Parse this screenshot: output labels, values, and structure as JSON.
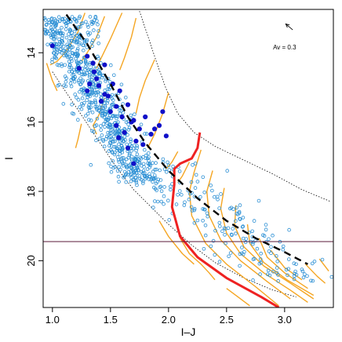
{
  "chart_data": {
    "type": "scatter",
    "title": "",
    "xlabel": "I–J",
    "ylabel": "I",
    "xlim": [
      0.92,
      3.42
    ],
    "ylim": [
      21.35,
      12.75
    ],
    "y_inverted": true,
    "xticks": [
      1.0,
      1.5,
      2.0,
      2.5,
      3.0
    ],
    "xtick_labels": [
      "1.0",
      "1.5",
      "2.0",
      "2.5",
      "3.0"
    ],
    "yticks": [
      14,
      16,
      18,
      20
    ],
    "ytick_labels": [
      "14",
      "16",
      "18",
      "20"
    ],
    "annotation": {
      "text": "Av = 0.3",
      "x": 3.0,
      "y": 13.9
    },
    "reddening_vector": {
      "from": [
        3.07,
        13.34
      ],
      "to": [
        3.01,
        13.17
      ]
    },
    "limit_line": {
      "y": 19.45,
      "color": "#5a1a3a"
    },
    "colors": {
      "open_points": "#2b8fd4",
      "filled_points": "#1010c8",
      "tracks": "#f5a623",
      "highlight_track": "#ee2222",
      "isochrone": "#000000"
    },
    "filled_points": [
      [
        1.0,
        13.8
      ],
      [
        1.23,
        14.45
      ],
      [
        1.3,
        14.1
      ],
      [
        1.3,
        15.1
      ],
      [
        1.32,
        14.9
      ],
      [
        1.35,
        14.3
      ],
      [
        1.38,
        14.75
      ],
      [
        1.4,
        14.95
      ],
      [
        1.42,
        15.4
      ],
      [
        1.45,
        14.35
      ],
      [
        1.45,
        15.2
      ],
      [
        1.5,
        15.7
      ],
      [
        1.52,
        14.9
      ],
      [
        1.55,
        15.55
      ],
      [
        1.55,
        16.1
      ],
      [
        1.58,
        15.1
      ],
      [
        1.6,
        15.85
      ],
      [
        1.62,
        16.3
      ],
      [
        1.65,
        15.5
      ],
      [
        1.68,
        16.0
      ],
      [
        1.7,
        15.95
      ],
      [
        1.72,
        16.55
      ],
      [
        1.75,
        16.2
      ],
      [
        1.78,
        16.65
      ],
      [
        1.8,
        15.85
      ],
      [
        1.85,
        16.35
      ],
      [
        1.88,
        16.2
      ],
      [
        1.92,
        16.1
      ],
      [
        1.95,
        15.7
      ],
      [
        1.98,
        16.4
      ],
      [
        1.65,
        16.75
      ],
      [
        1.7,
        17.2
      ],
      [
        1.48,
        15.25
      ],
      [
        1.36,
        14.55
      ],
      [
        1.57,
        16.45
      ]
    ],
    "dashed_isochrone": [
      [
        1.12,
        12.9
      ],
      [
        1.3,
        13.75
      ],
      [
        1.5,
        14.9
      ],
      [
        1.65,
        15.85
      ],
      [
        1.8,
        16.6
      ],
      [
        2.0,
        17.4
      ],
      [
        2.25,
        18.2
      ],
      [
        2.5,
        18.85
      ],
      [
        2.75,
        19.35
      ],
      [
        3.0,
        19.75
      ],
      [
        3.2,
        20.1
      ]
    ],
    "dotted_envelope_left": [
      [
        1.0,
        14.55
      ],
      [
        1.2,
        15.55
      ],
      [
        1.4,
        16.55
      ],
      [
        1.55,
        17.3
      ],
      [
        1.7,
        17.95
      ],
      [
        1.85,
        18.45
      ],
      [
        2.0,
        18.95
      ],
      [
        2.2,
        19.55
      ],
      [
        2.4,
        20.05
      ],
      [
        2.65,
        20.5
      ],
      [
        2.9,
        20.85
      ],
      [
        3.1,
        21.05
      ]
    ],
    "dotted_envelope_right": [
      [
        1.75,
        12.8
      ],
      [
        1.82,
        13.5
      ],
      [
        1.9,
        14.3
      ],
      [
        1.98,
        15.05
      ],
      [
        2.08,
        15.75
      ],
      [
        2.22,
        16.3
      ],
      [
        2.4,
        16.7
      ],
      [
        2.65,
        17.1
      ],
      [
        2.9,
        17.5
      ],
      [
        3.15,
        17.95
      ],
      [
        3.4,
        18.3
      ]
    ],
    "highlight_track": [
      [
        2.27,
        16.3
      ],
      [
        2.25,
        16.75
      ],
      [
        2.2,
        17.05
      ],
      [
        2.1,
        17.2
      ],
      [
        2.05,
        17.35
      ],
      [
        2.05,
        17.8
      ],
      [
        2.03,
        18.45
      ],
      [
        2.1,
        19.3
      ],
      [
        2.25,
        19.9
      ],
      [
        2.5,
        20.5
      ],
      [
        2.8,
        21.05
      ],
      [
        2.95,
        21.35
      ]
    ],
    "tracks": [
      [
        [
          1.28,
          12.85
        ],
        [
          1.22,
          13.4
        ],
        [
          1.12,
          13.95
        ],
        [
          1.04,
          14.25
        ],
        [
          0.98,
          14.35
        ]
      ],
      [
        [
          1.45,
          12.95
        ],
        [
          1.38,
          13.55
        ],
        [
          1.3,
          14.0
        ],
        [
          1.25,
          14.25
        ]
      ],
      [
        [
          1.6,
          12.85
        ],
        [
          1.5,
          13.6
        ],
        [
          1.42,
          14.15
        ],
        [
          1.38,
          14.45
        ]
      ],
      [
        [
          1.72,
          13.0
        ],
        [
          1.68,
          13.55
        ],
        [
          1.62,
          14.15
        ],
        [
          1.58,
          14.5
        ]
      ],
      [
        [
          1.88,
          14.2
        ],
        [
          1.8,
          14.8
        ],
        [
          1.75,
          15.3
        ],
        [
          1.72,
          15.75
        ]
      ],
      [
        [
          2.0,
          15.15
        ],
        [
          1.95,
          15.75
        ],
        [
          1.88,
          16.35
        ],
        [
          1.82,
          16.75
        ]
      ],
      [
        [
          1.45,
          15.3
        ],
        [
          1.4,
          15.8
        ],
        [
          1.35,
          16.1
        ],
        [
          1.38,
          16.35
        ]
      ],
      [
        [
          1.25,
          16.05
        ],
        [
          1.22,
          16.5
        ],
        [
          1.2,
          16.75
        ]
      ],
      [
        [
          0.95,
          14.3
        ],
        [
          1.0,
          14.8
        ],
        [
          1.04,
          15.1
        ]
      ],
      [
        [
          2.08,
          16.85
        ],
        [
          2.03,
          17.15
        ],
        [
          1.98,
          17.35
        ]
      ],
      [
        [
          2.18,
          17.15
        ],
        [
          2.12,
          17.55
        ],
        [
          2.08,
          17.75
        ]
      ],
      [
        [
          2.28,
          16.8
        ],
        [
          2.22,
          17.45
        ],
        [
          2.18,
          18.0
        ],
        [
          2.2,
          18.7
        ],
        [
          2.32,
          19.5
        ],
        [
          2.5,
          20.1
        ],
        [
          2.75,
          20.75
        ],
        [
          2.95,
          21.3
        ]
      ],
      [
        [
          2.38,
          17.4
        ],
        [
          2.33,
          18.0
        ],
        [
          2.35,
          18.7
        ],
        [
          2.45,
          19.4
        ],
        [
          2.62,
          20.0
        ],
        [
          2.85,
          20.6
        ],
        [
          3.05,
          21.1
        ]
      ],
      [
        [
          2.48,
          17.9
        ],
        [
          2.45,
          18.5
        ],
        [
          2.5,
          19.2
        ],
        [
          2.62,
          19.8
        ],
        [
          2.82,
          20.35
        ],
        [
          3.05,
          20.85
        ],
        [
          3.2,
          21.2
        ]
      ],
      [
        [
          2.58,
          18.4
        ],
        [
          2.57,
          19.0
        ],
        [
          2.65,
          19.6
        ],
        [
          2.82,
          20.15
        ],
        [
          3.05,
          20.65
        ],
        [
          3.25,
          21.1
        ]
      ],
      [
        [
          2.68,
          18.95
        ],
        [
          2.7,
          19.5
        ],
        [
          2.82,
          20.05
        ],
        [
          3.02,
          20.55
        ],
        [
          3.25,
          21.0
        ]
      ],
      [
        [
          2.78,
          19.35
        ],
        [
          2.85,
          19.9
        ],
        [
          3.0,
          20.35
        ],
        [
          3.2,
          20.8
        ]
      ],
      [
        [
          2.88,
          19.7
        ],
        [
          3.0,
          20.2
        ],
        [
          3.15,
          20.55
        ]
      ],
      [
        [
          3.18,
          20.1
        ],
        [
          3.28,
          20.45
        ],
        [
          3.35,
          20.65
        ]
      ],
      [
        [
          3.3,
          19.95
        ],
        [
          3.38,
          20.3
        ]
      ],
      [
        [
          2.1,
          19.35
        ],
        [
          2.18,
          19.8
        ],
        [
          2.28,
          20.1
        ],
        [
          2.35,
          20.35
        ],
        [
          2.4,
          20.55
        ]
      ],
      [
        [
          1.92,
          18.85
        ],
        [
          2.0,
          19.3
        ],
        [
          2.12,
          19.8
        ],
        [
          2.22,
          20.1
        ]
      ],
      [
        [
          2.5,
          20.8
        ],
        [
          2.6,
          21.05
        ],
        [
          2.7,
          21.3
        ]
      ]
    ]
  }
}
